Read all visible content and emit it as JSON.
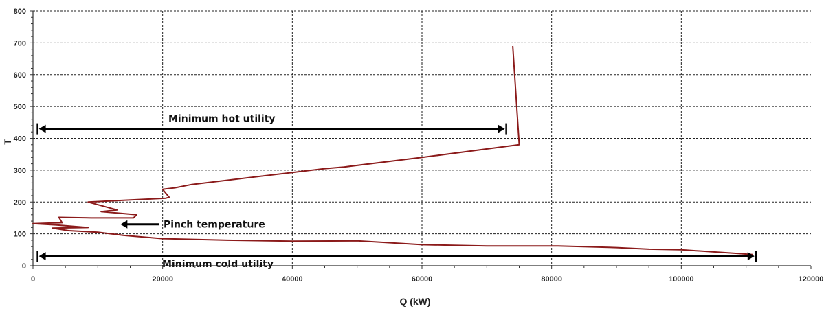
{
  "chart_data": {
    "type": "line",
    "title": "",
    "xlabel": "Q (kW)",
    "ylabel": "T",
    "xlim": [
      0,
      120000
    ],
    "ylim": [
      0,
      800
    ],
    "x_ticks": [
      "0",
      "20000",
      "40000",
      "60000",
      "80000",
      "100000",
      "120000"
    ],
    "y_ticks": [
      "0",
      "100",
      "200",
      "300",
      "400",
      "500",
      "600",
      "700",
      "800"
    ],
    "grid": true,
    "legend": "none",
    "line_color": "#8b1a1a",
    "series": [
      {
        "name": "",
        "points": [
          [
            74000,
            690
          ],
          [
            75000,
            380
          ],
          [
            60000,
            340
          ],
          [
            48000,
            310
          ],
          [
            45000,
            305
          ],
          [
            24500,
            255
          ],
          [
            22000,
            245
          ],
          [
            20000,
            240
          ],
          [
            21000,
            215
          ],
          [
            20500,
            212
          ],
          [
            8500,
            200
          ],
          [
            13000,
            175
          ],
          [
            10500,
            170
          ],
          [
            16000,
            160
          ],
          [
            15500,
            150
          ],
          [
            9000,
            150
          ],
          [
            4000,
            152
          ],
          [
            4500,
            135
          ],
          [
            0,
            132
          ],
          [
            3500,
            128
          ],
          [
            8500,
            120
          ],
          [
            3000,
            118
          ],
          [
            5500,
            110
          ],
          [
            10000,
            105
          ],
          [
            14000,
            95
          ],
          [
            17000,
            90
          ],
          [
            20000,
            85
          ],
          [
            30000,
            80
          ],
          [
            40000,
            77
          ],
          [
            50000,
            78
          ],
          [
            60000,
            66
          ],
          [
            70000,
            62
          ],
          [
            81000,
            62
          ],
          [
            90000,
            57
          ],
          [
            95000,
            52
          ],
          [
            100000,
            50
          ],
          [
            106000,
            42
          ],
          [
            109000,
            38
          ],
          [
            111000,
            35
          ]
        ]
      }
    ],
    "annotations": [
      {
        "id": "hot",
        "text": "Minimum hot utility",
        "x_start": 700,
        "x_end": 73000,
        "y": 430,
        "arrow": "both"
      },
      {
        "id": "cold",
        "text": "Minimum cold utility",
        "x_start": 700,
        "x_end": 111500,
        "y": 30,
        "arrow": "both"
      },
      {
        "id": "pinch",
        "text": "Pinch temperature",
        "x_from": 19500,
        "x_to": 13500,
        "y": 130,
        "arrow": "left"
      }
    ]
  }
}
